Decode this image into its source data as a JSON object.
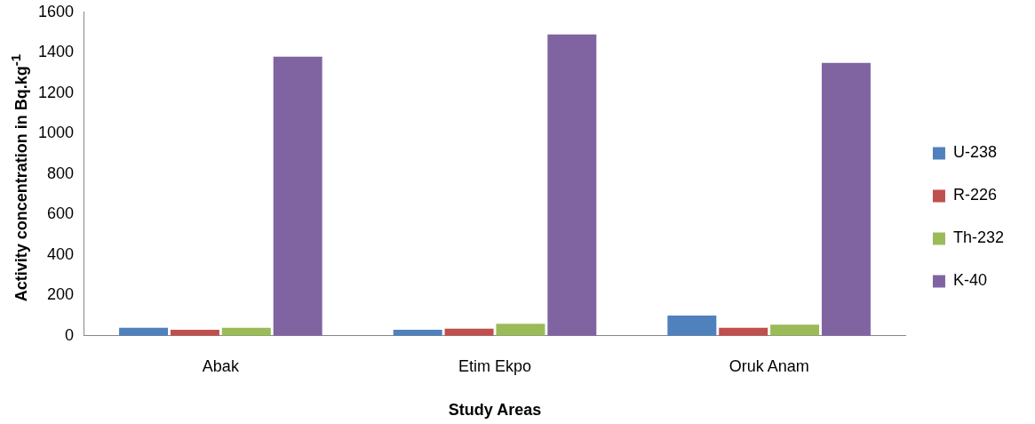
{
  "chart_data": {
    "type": "bar",
    "xlabel": "Study Areas",
    "ylabel": "Activity concentration in Bq.kg$^{-1}$",
    "categories": [
      "Abak",
      "Etim Ekpo",
      "Oruk Anam"
    ],
    "series": [
      {
        "name": "U-238",
        "color": "#4f81bd",
        "values": [
          40,
          30,
          100
        ]
      },
      {
        "name": "R-226",
        "color": "#c0504d",
        "values": [
          30,
          35,
          40
        ]
      },
      {
        "name": "Th-232",
        "color": "#9bbb59",
        "values": [
          40,
          60,
          55
        ]
      },
      {
        "name": "K-40",
        "color": "#8064a2",
        "values": [
          1380,
          1490,
          1350
        ]
      }
    ],
    "ylim": [
      0,
      1600
    ],
    "yticks": [
      0,
      200,
      400,
      600,
      800,
      1000,
      1200,
      1400,
      1600
    ],
    "grid": false,
    "legend": "right"
  }
}
